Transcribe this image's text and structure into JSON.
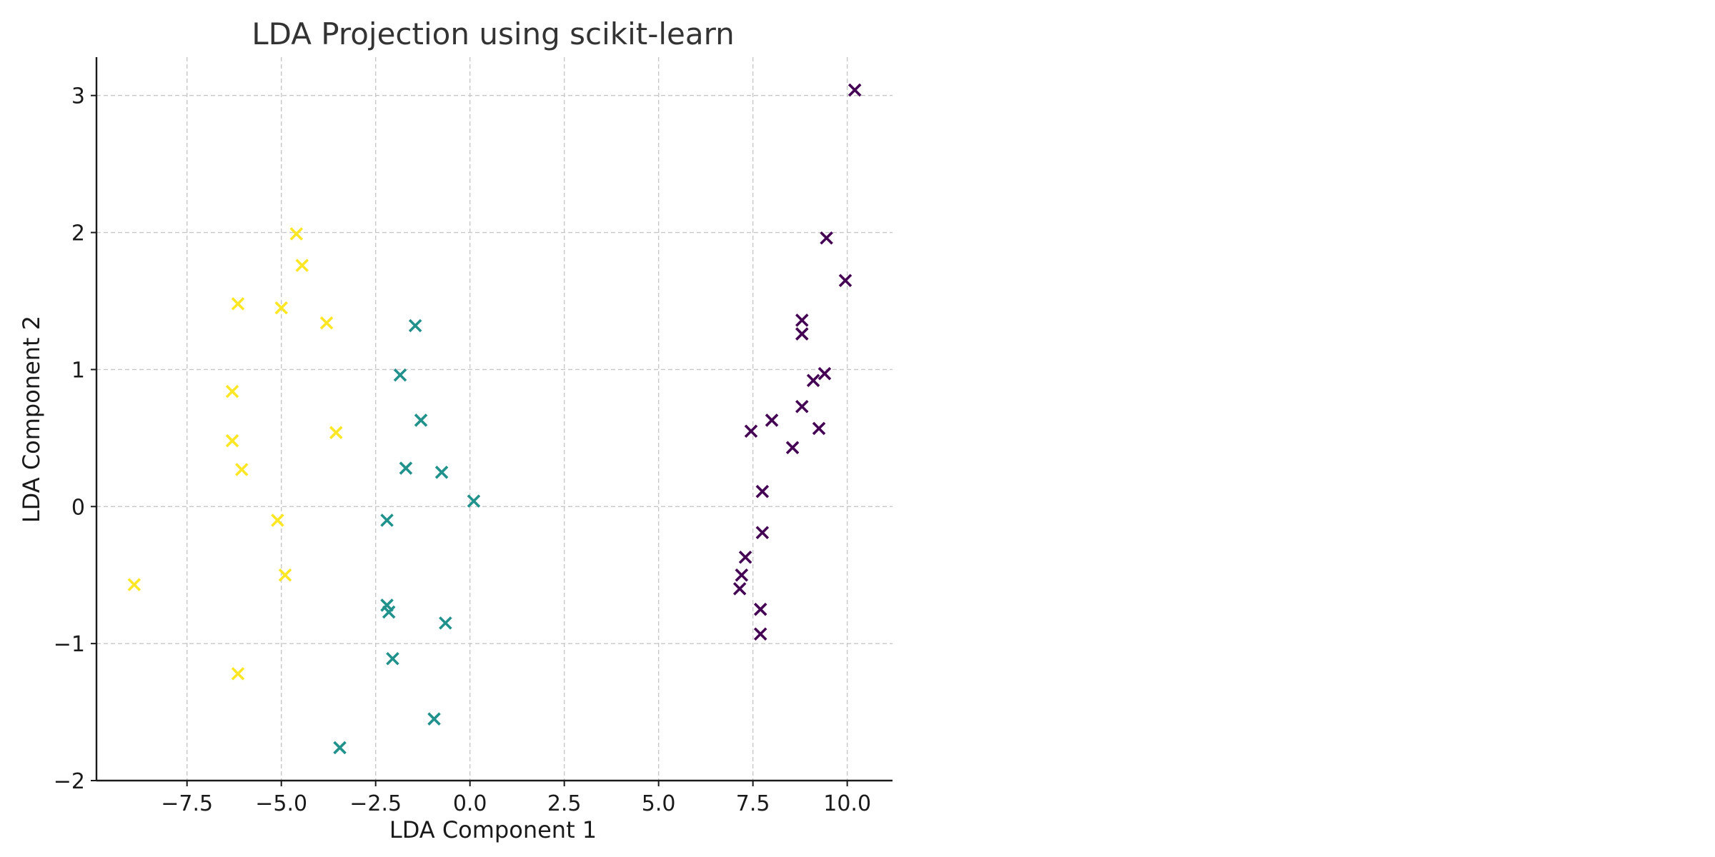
{
  "chart_data": {
    "type": "scatter",
    "title": "LDA Projection using scikit-learn",
    "xlabel": "LDA Component 1",
    "ylabel": "LDA Component 2",
    "xlim": [
      -9.9,
      11.2
    ],
    "ylim": [
      -2.0,
      3.28
    ],
    "xticks": [
      -7.5,
      -5.0,
      -2.5,
      0.0,
      2.5,
      5.0,
      7.5,
      10.0
    ],
    "xtick_labels": [
      "−7.5",
      "−5.0",
      "−2.5",
      "0.0",
      "2.5",
      "5.0",
      "7.5",
      "10.0"
    ],
    "yticks": [
      -2,
      -1,
      0,
      1,
      2,
      3
    ],
    "ytick_labels": [
      "−2",
      "−1",
      "0",
      "1",
      "2",
      "3"
    ],
    "grid": true,
    "marker": "x",
    "series": [
      {
        "color": "#440154",
        "points": [
          [
            10.2,
            3.04
          ],
          [
            9.45,
            1.96
          ],
          [
            9.95,
            1.65
          ],
          [
            8.8,
            1.36
          ],
          [
            8.8,
            1.26
          ],
          [
            9.4,
            0.97
          ],
          [
            9.1,
            0.92
          ],
          [
            8.8,
            0.73
          ],
          [
            8.0,
            0.63
          ],
          [
            7.45,
            0.55
          ],
          [
            9.25,
            0.57
          ],
          [
            8.55,
            0.43
          ],
          [
            7.75,
            0.11
          ],
          [
            7.75,
            -0.19
          ],
          [
            7.3,
            -0.37
          ],
          [
            7.2,
            -0.5
          ],
          [
            7.15,
            -0.6
          ],
          [
            7.7,
            -0.75
          ],
          [
            7.7,
            -0.93
          ]
        ]
      },
      {
        "color": "#21918c",
        "points": [
          [
            -1.45,
            1.32
          ],
          [
            -1.85,
            0.96
          ],
          [
            -1.3,
            0.63
          ],
          [
            -1.7,
            0.28
          ],
          [
            -0.75,
            0.25
          ],
          [
            0.1,
            0.04
          ],
          [
            -2.2,
            -0.1
          ],
          [
            -2.2,
            -0.72
          ],
          [
            -2.15,
            -0.77
          ],
          [
            -0.65,
            -0.85
          ],
          [
            -2.05,
            -1.11
          ],
          [
            -0.95,
            -1.55
          ],
          [
            -3.45,
            -1.76
          ]
        ]
      },
      {
        "color": "#fde725",
        "points": [
          [
            -4.6,
            1.99
          ],
          [
            -4.45,
            1.76
          ],
          [
            -6.15,
            1.48
          ],
          [
            -5.0,
            1.45
          ],
          [
            -3.8,
            1.34
          ],
          [
            -6.3,
            0.84
          ],
          [
            -3.55,
            0.54
          ],
          [
            -6.3,
            0.48
          ],
          [
            -6.05,
            0.27
          ],
          [
            -5.1,
            -0.1
          ],
          [
            -4.9,
            -0.5
          ],
          [
            -8.9,
            -0.57
          ],
          [
            -6.15,
            -1.22
          ]
        ]
      }
    ]
  }
}
